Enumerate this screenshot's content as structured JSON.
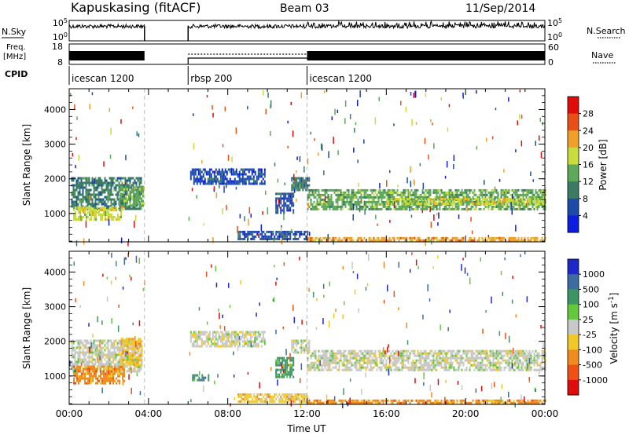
{
  "header": {
    "station": "Kapuskasing (fitACF)",
    "beam": "Beam 03",
    "date": "11/Sep/2014"
  },
  "strip_labels": {
    "nsky": "N.Sky",
    "nsearch": "N.Search",
    "freq_line1": "Freq.",
    "freq_line2": "[MHz]",
    "nave": "Nave",
    "cpid": "CPID",
    "nsky_ticks": [
      "10^5",
      "10^0"
    ],
    "nsearch_ticks": [
      "10^5",
      "10^0"
    ],
    "freq_ticks": [
      "18",
      "8"
    ],
    "nave_ticks": [
      "60",
      "0"
    ]
  },
  "cpid_segments": [
    {
      "label": "icescan 1200",
      "start_h": 0.0,
      "end_h": 3.8
    },
    {
      "label": "rbsp 200",
      "start_h": 6.0,
      "end_h": 12.0
    },
    {
      "label": "icescan 1200",
      "start_h": 12.0,
      "end_h": 24.0
    }
  ],
  "chart_data": [
    {
      "type": "heatmap",
      "panel": "power",
      "xlabel": "",
      "ylabel": "Slant Range [km]",
      "xlim": [
        0,
        24
      ],
      "ylim": [
        180,
        4600
      ],
      "yticks": [
        1000,
        2000,
        3000,
        4000
      ],
      "colorbar_label": "Power [dB]",
      "colorbar_ticks": [
        "4",
        "8",
        "12",
        "16",
        "20",
        "24",
        "28"
      ],
      "colorbar_colors": [
        "#0c1de0",
        "#1e4aa8",
        "#3c7c64",
        "#5ea85a",
        "#c8dc3c",
        "#f0a028",
        "#e85018",
        "#e00c0c"
      ],
      "regions": [
        {
          "x0": 0.1,
          "x1": 3.6,
          "y0": 1150,
          "y1": 2050,
          "level": 2
        },
        {
          "x0": 0.2,
          "x1": 2.6,
          "y0": 800,
          "y1": 1200,
          "level": 4
        },
        {
          "x0": 2.5,
          "x1": 3.7,
          "y0": 1250,
          "y1": 1800,
          "level": 3
        },
        {
          "x0": 6.1,
          "x1": 9.9,
          "y0": 1850,
          "y1": 2300,
          "level": 1
        },
        {
          "x0": 10.4,
          "x1": 11.3,
          "y0": 1000,
          "y1": 1600,
          "level": 1
        },
        {
          "x0": 11.2,
          "x1": 12.1,
          "y0": 1650,
          "y1": 2050,
          "level": 2
        },
        {
          "x0": 12.0,
          "x1": 24.0,
          "y0": 1150,
          "y1": 1700,
          "level": 3
        },
        {
          "x0": 16.0,
          "x1": 24.0,
          "y0": 1250,
          "y1": 1450,
          "level": 4
        },
        {
          "x0": 8.5,
          "x1": 12.0,
          "y0": 250,
          "y1": 500,
          "level": 1
        },
        {
          "x0": 12.0,
          "x1": 24.0,
          "y0": 190,
          "y1": 320,
          "level": 5
        }
      ]
    },
    {
      "type": "heatmap",
      "panel": "velocity",
      "xlabel": "Time UT",
      "ylabel": "Slant Range [km]",
      "xlim": [
        0,
        24
      ],
      "ylim": [
        180,
        4600
      ],
      "yticks": [
        1000,
        2000,
        3000,
        4000
      ],
      "xticks": [
        "00:00",
        "04:00",
        "08:00",
        "12:00",
        "16:00",
        "20:00",
        "00:00"
      ],
      "colorbar_label": "Velocity [m s^-1]",
      "colorbar_ticks": [
        "1000",
        "500",
        "100",
        "25",
        "-25",
        "-100",
        "-500",
        "-1000"
      ],
      "colorbar_colors": [
        "#1e28c8",
        "#3c6ca0",
        "#3c9664",
        "#64c83c",
        "#c8c8c8",
        "#f0c828",
        "#f08c1e",
        "#f05014",
        "#e00c0c"
      ],
      "regions": [
        {
          "x0": 0.1,
          "x1": 3.6,
          "y0": 1150,
          "y1": 2050,
          "level": 4
        },
        {
          "x0": 0.2,
          "x1": 2.8,
          "y0": 800,
          "y1": 1300,
          "level": 6
        },
        {
          "x0": 2.6,
          "x1": 3.7,
          "y0": 1300,
          "y1": 2100,
          "level": 5
        },
        {
          "x0": 6.1,
          "x1": 9.9,
          "y0": 1850,
          "y1": 2300,
          "level": 4
        },
        {
          "x0": 6.2,
          "x1": 7.0,
          "y0": 900,
          "y1": 1050,
          "level": 2
        },
        {
          "x0": 10.4,
          "x1": 11.3,
          "y0": 1000,
          "y1": 1550,
          "level": 2
        },
        {
          "x0": 11.2,
          "x1": 12.1,
          "y0": 1650,
          "y1": 2050,
          "level": 4
        },
        {
          "x0": 12.0,
          "x1": 24.0,
          "y0": 1150,
          "y1": 1750,
          "level": 4
        },
        {
          "x0": 8.5,
          "x1": 12.0,
          "y0": 250,
          "y1": 500,
          "level": 5
        },
        {
          "x0": 12.0,
          "x1": 24.0,
          "y0": 190,
          "y1": 320,
          "level": 6
        }
      ]
    }
  ]
}
